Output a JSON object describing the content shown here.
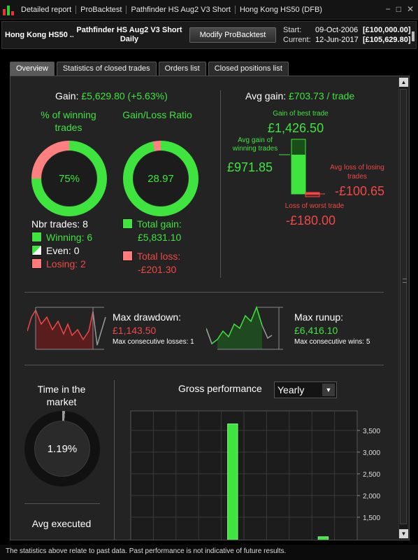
{
  "titlebar": {
    "crumbs": [
      "Detailed report",
      "ProBacktest",
      "Pathfinder HS Aug2 V3 Short",
      "Hong Kong HS50 (DFB)"
    ],
    "controls": [
      "−",
      "□",
      "✕"
    ]
  },
  "header": {
    "instrument": "Hong Kong HS50 ...",
    "system_line1": "Pathfinder HS Aug2 V3 Short",
    "system_line2": "Daily",
    "modify_button": "Modify ProBacktest",
    "start_label": "Start:",
    "start_date": "09-Oct-2006",
    "start_capital": "[£100,000.00]",
    "current_label": "Current:",
    "current_date": "12-Jun-2017",
    "current_capital": "[£105,629.80]"
  },
  "tabs": [
    "Overview",
    "Statistics of closed trades",
    "Orders list",
    "Closed positions list"
  ],
  "overview": {
    "gain_label": "Gain:",
    "gain_value": "£5,629.80 (+5.63%)",
    "winning_title": "% of winning trades",
    "winning_pct": "75%",
    "winning_fraction": 0.75,
    "gainloss_title": "Gain/Loss Ratio",
    "gainloss_ratio": "28.97",
    "gain_share": 0.966,
    "nbr_trades": "Nbr trades: 8",
    "winning": "Winning: 6",
    "even": "Even: 0",
    "losing": "Losing: 2",
    "total_gain_label": "Total gain:",
    "total_gain_value": "£5,831.10",
    "total_loss_label": "Total loss:",
    "total_loss_value": "-£201.30",
    "avg_gain_label": "Avg gain:",
    "avg_gain_value": "£703.73 / trade",
    "best_trade_label": "Gain of best trade",
    "best_trade_value": "£1,426.50",
    "avg_win_label": "Avg gain of winning trades",
    "avg_win_value": "£971.85",
    "avg_loss_label": "Avg loss of losing trades",
    "avg_loss_value": "-£100.65",
    "worst_trade_label": "Loss of worst trade",
    "worst_trade_value": "-£180.00",
    "max_drawdown_label": "Max drawdown:",
    "max_drawdown_value": "£1,143.50",
    "max_consec_losses": "Max consecutive losses: 1",
    "max_runup_label": "Max runup:",
    "max_runup_value": "£6,416.10",
    "max_consec_wins": "Max consecutive wins: 5",
    "time_in_market_label": "Time in the market",
    "time_in_market_value": "1.19%",
    "time_in_market_fraction": 0.0119,
    "avg_executed_label": "Avg executed",
    "gross_perf_label": "Gross performance",
    "period_select": "Yearly"
  },
  "chart_data": {
    "type": "bar",
    "title": "Gross performance",
    "yticks": [
      1500,
      2000,
      2500,
      3000,
      3500
    ],
    "ytick_labels": [
      "1,500",
      "2,000",
      "2,500",
      "3,000",
      "3,500"
    ],
    "ylim": [
      950,
      3950
    ],
    "values": [
      null,
      null,
      null,
      null,
      3650,
      null,
      null,
      null,
      1050,
      null
    ],
    "grid": true
  },
  "colors": {
    "gain": "#3fe43f",
    "loss": "#f04848",
    "loss_fill": "#ff8080",
    "even": "#f0f0f0"
  },
  "footer": "The statistics above relate to past data. Past performance is not indicative of future results."
}
